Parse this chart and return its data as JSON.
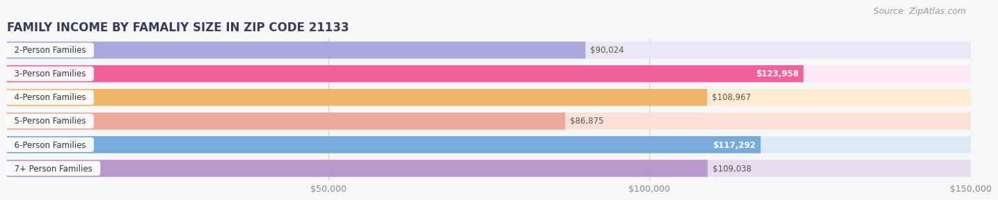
{
  "title": "FAMILY INCOME BY FAMALIY SIZE IN ZIP CODE 21133",
  "source": "Source: ZipAtlas.com",
  "categories": [
    "2-Person Families",
    "3-Person Families",
    "4-Person Families",
    "5-Person Families",
    "6-Person Families",
    "7+ Person Families"
  ],
  "values": [
    90024,
    123958,
    108967,
    86875,
    117292,
    109038
  ],
  "bar_colors": [
    "#a8a8dc",
    "#f0609a",
    "#f0b468",
    "#f0a898",
    "#78aadc",
    "#b898cc"
  ],
  "bar_bg_colors": [
    "#e8e8f4",
    "#fce8f4",
    "#fdecd4",
    "#fce0d8",
    "#dceaf8",
    "#e8dcf0"
  ],
  "label_colors": [
    "#555555",
    "#ffffff",
    "#555555",
    "#555555",
    "#ffffff",
    "#555555"
  ],
  "dot_colors": [
    "#a8a8dc",
    "#f0609a",
    "#f0b468",
    "#f0a898",
    "#78aadc",
    "#b898cc"
  ],
  "xlim_max": 150000,
  "xticks": [
    50000,
    100000,
    150000
  ],
  "xtick_labels": [
    "$50,000",
    "$100,000",
    "$150,000"
  ],
  "bg_color": "#f7f7f7",
  "title_color": "#3a3a5c",
  "source_color": "#999999",
  "grid_color": "#cccccc",
  "title_fontsize": 12,
  "value_fontsize": 8.5,
  "category_fontsize": 8.5,
  "source_fontsize": 9
}
